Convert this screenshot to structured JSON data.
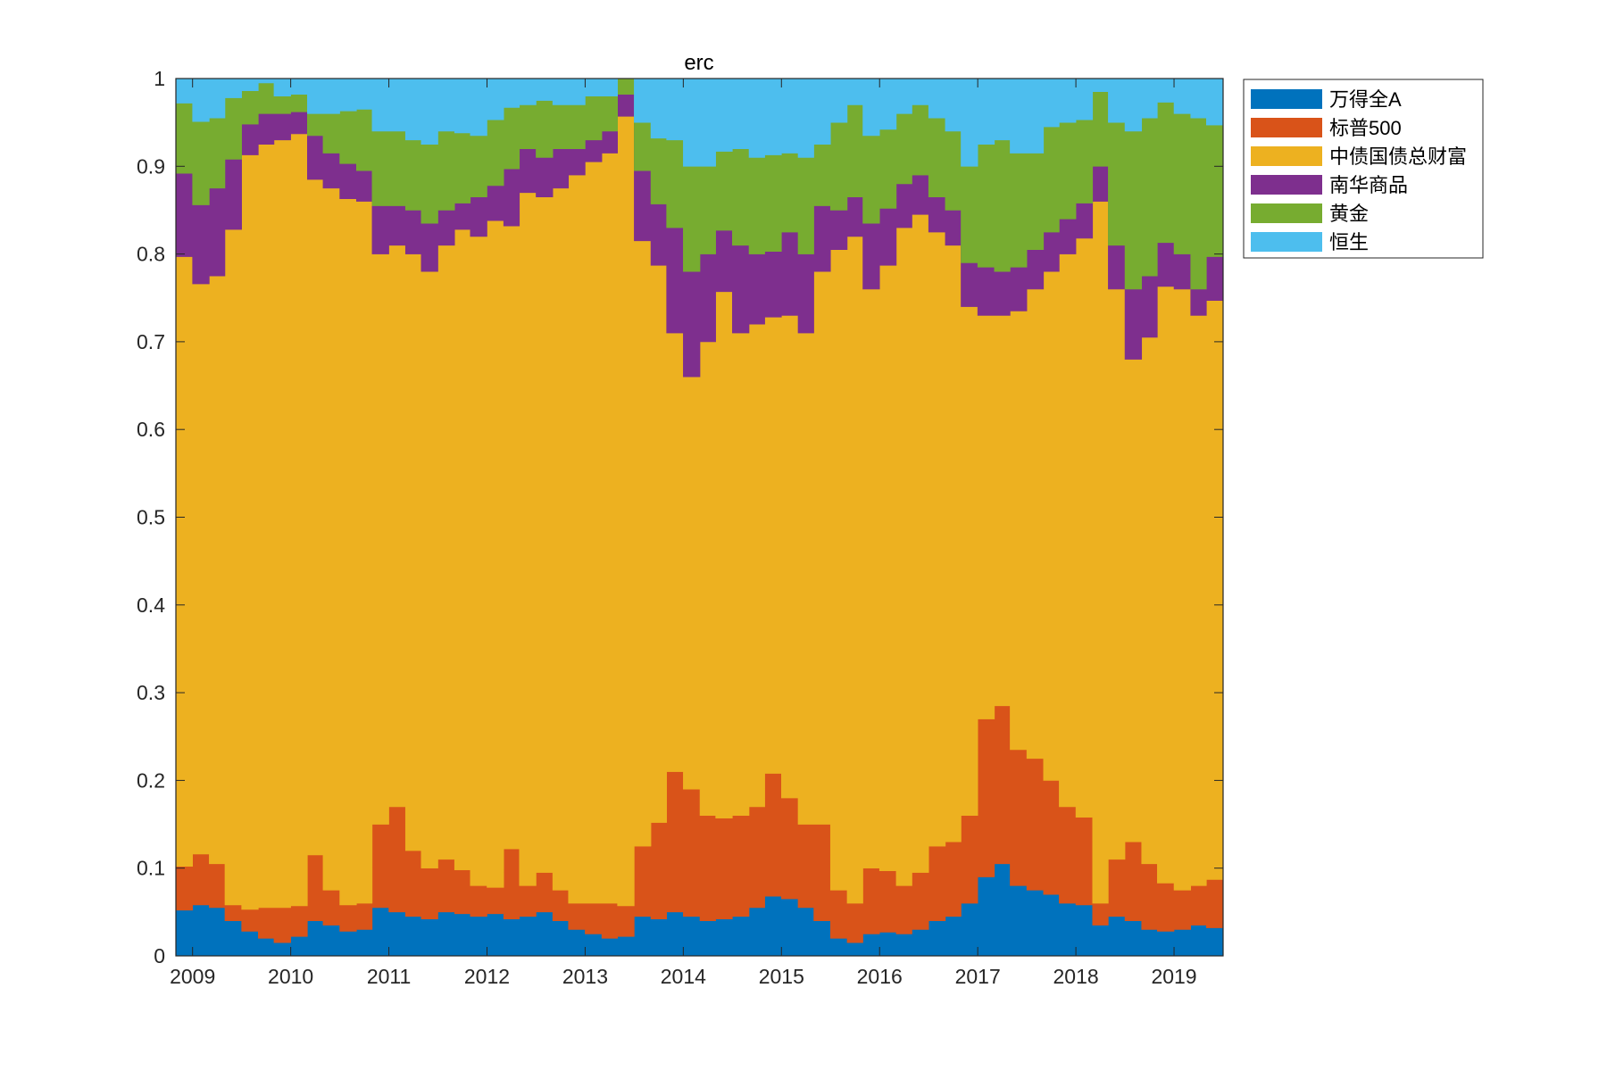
{
  "chart_data": {
    "type": "area",
    "stacked": true,
    "style": "stepped",
    "title": "erc",
    "xlabel": "",
    "ylabel": "",
    "xlim": [
      2008.83,
      2019.5
    ],
    "ylim": [
      0,
      1
    ],
    "x_ticks": [
      "2009",
      "2010",
      "2011",
      "2012",
      "2013",
      "2014",
      "2015",
      "2016",
      "2017",
      "2018",
      "2019"
    ],
    "y_ticks": [
      "0",
      "0.1",
      "0.2",
      "0.3",
      "0.4",
      "0.5",
      "0.6",
      "0.7",
      "0.8",
      "0.9",
      "1"
    ],
    "grid": false,
    "legend_position": "outside-top-right",
    "x": [
      2008.83,
      2009.0,
      2009.17,
      2009.33,
      2009.5,
      2009.67,
      2009.83,
      2010.0,
      2010.17,
      2010.33,
      2010.5,
      2010.67,
      2010.83,
      2011.0,
      2011.17,
      2011.33,
      2011.5,
      2011.67,
      2011.83,
      2012.0,
      2012.17,
      2012.33,
      2012.5,
      2012.67,
      2012.83,
      2013.0,
      2013.17,
      2013.33,
      2013.5,
      2013.67,
      2013.83,
      2014.0,
      2014.17,
      2014.33,
      2014.5,
      2014.67,
      2014.83,
      2015.0,
      2015.17,
      2015.33,
      2015.5,
      2015.67,
      2015.83,
      2016.0,
      2016.17,
      2016.33,
      2016.5,
      2016.67,
      2016.83,
      2017.0,
      2017.17,
      2017.33,
      2017.5,
      2017.67,
      2017.83,
      2018.0,
      2018.17,
      2018.33,
      2018.5,
      2018.67,
      2018.83,
      2019.0,
      2019.17,
      2019.33
    ],
    "series": [
      {
        "name": "万得全A",
        "color": "#0072BD",
        "values": [
          0.052,
          0.058,
          0.055,
          0.04,
          0.028,
          0.02,
          0.015,
          0.022,
          0.04,
          0.035,
          0.028,
          0.03,
          0.055,
          0.05,
          0.045,
          0.042,
          0.05,
          0.048,
          0.045,
          0.048,
          0.042,
          0.045,
          0.05,
          0.04,
          0.03,
          0.025,
          0.02,
          0.022,
          0.045,
          0.042,
          0.05,
          0.045,
          0.04,
          0.042,
          0.045,
          0.055,
          0.068,
          0.065,
          0.055,
          0.04,
          0.02,
          0.015,
          0.025,
          0.027,
          0.025,
          0.03,
          0.04,
          0.045,
          0.06,
          0.09,
          0.105,
          0.08,
          0.075,
          0.07,
          0.06,
          0.058,
          0.035,
          0.045,
          0.04,
          0.03,
          0.028,
          0.03,
          0.035,
          0.032
        ]
      },
      {
        "name": "标普500",
        "color": "#D95319",
        "values": [
          0.05,
          0.058,
          0.05,
          0.018,
          0.025,
          0.035,
          0.04,
          0.035,
          0.075,
          0.04,
          0.03,
          0.03,
          0.095,
          0.12,
          0.075,
          0.058,
          0.06,
          0.05,
          0.035,
          0.03,
          0.08,
          0.035,
          0.045,
          0.035,
          0.03,
          0.035,
          0.04,
          0.035,
          0.08,
          0.11,
          0.16,
          0.145,
          0.12,
          0.115,
          0.115,
          0.115,
          0.14,
          0.115,
          0.095,
          0.11,
          0.055,
          0.045,
          0.075,
          0.07,
          0.055,
          0.065,
          0.085,
          0.085,
          0.1,
          0.18,
          0.18,
          0.155,
          0.15,
          0.13,
          0.11,
          0.1,
          0.025,
          0.065,
          0.09,
          0.075,
          0.055,
          0.045,
          0.045,
          0.055
        ]
      },
      {
        "name": "中债国债总财富",
        "color": "#EDB120",
        "values": [
          0.695,
          0.65,
          0.67,
          0.77,
          0.86,
          0.87,
          0.875,
          0.88,
          0.77,
          0.8,
          0.805,
          0.8,
          0.65,
          0.64,
          0.68,
          0.68,
          0.7,
          0.73,
          0.74,
          0.76,
          0.71,
          0.79,
          0.77,
          0.8,
          0.83,
          0.845,
          0.855,
          0.9,
          0.69,
          0.635,
          0.5,
          0.47,
          0.54,
          0.6,
          0.55,
          0.55,
          0.52,
          0.55,
          0.56,
          0.63,
          0.73,
          0.76,
          0.66,
          0.69,
          0.75,
          0.75,
          0.7,
          0.68,
          0.58,
          0.46,
          0.445,
          0.5,
          0.535,
          0.58,
          0.63,
          0.66,
          0.8,
          0.65,
          0.55,
          0.6,
          0.68,
          0.685,
          0.65,
          0.66
        ]
      },
      {
        "name": "南华商品",
        "color": "#7E2F8E",
        "values": [
          0.095,
          0.09,
          0.1,
          0.08,
          0.035,
          0.035,
          0.03,
          0.025,
          0.05,
          0.04,
          0.04,
          0.035,
          0.055,
          0.045,
          0.05,
          0.055,
          0.04,
          0.03,
          0.045,
          0.04,
          0.065,
          0.05,
          0.045,
          0.045,
          0.03,
          0.025,
          0.025,
          0.025,
          0.08,
          0.07,
          0.12,
          0.12,
          0.1,
          0.07,
          0.1,
          0.08,
          0.075,
          0.095,
          0.09,
          0.075,
          0.045,
          0.045,
          0.075,
          0.065,
          0.05,
          0.045,
          0.04,
          0.04,
          0.05,
          0.055,
          0.05,
          0.05,
          0.045,
          0.045,
          0.04,
          0.04,
          0.04,
          0.05,
          0.08,
          0.07,
          0.05,
          0.04,
          0.03,
          0.05
        ]
      },
      {
        "name": "黄金",
        "color": "#77AC30",
        "values": [
          0.08,
          0.095,
          0.08,
          0.07,
          0.038,
          0.035,
          0.02,
          0.02,
          0.025,
          0.045,
          0.06,
          0.07,
          0.085,
          0.085,
          0.08,
          0.09,
          0.09,
          0.08,
          0.07,
          0.075,
          0.07,
          0.05,
          0.065,
          0.05,
          0.05,
          0.05,
          0.04,
          0.02,
          0.055,
          0.075,
          0.1,
          0.12,
          0.1,
          0.09,
          0.11,
          0.11,
          0.11,
          0.09,
          0.11,
          0.07,
          0.1,
          0.105,
          0.1,
          0.09,
          0.08,
          0.08,
          0.09,
          0.09,
          0.11,
          0.14,
          0.15,
          0.13,
          0.11,
          0.12,
          0.11,
          0.095,
          0.085,
          0.14,
          0.18,
          0.18,
          0.16,
          0.16,
          0.195,
          0.15
        ]
      },
      {
        "name": "恒生",
        "color": "#4DBEEE",
        "values": [
          0.028,
          0.049,
          0.045,
          0.022,
          0.014,
          0.02,
          0.02,
          0.018,
          0.04,
          0.04,
          0.037,
          0.035,
          0.06,
          0.06,
          0.07,
          0.075,
          0.06,
          0.062,
          0.065,
          0.047,
          0.033,
          0.03,
          0.025,
          0.03,
          0.03,
          0.02,
          0.02,
          0.023,
          0.05,
          0.068,
          0.07,
          0.1,
          0.1,
          0.083,
          0.08,
          0.09,
          0.087,
          0.085,
          0.09,
          0.075,
          0.05,
          0.03,
          0.065,
          0.058,
          0.04,
          0.03,
          0.045,
          0.06,
          0.1,
          0.075,
          0.07,
          0.085,
          0.085,
          0.055,
          0.05,
          0.047,
          0.015,
          0.05,
          0.06,
          0.045,
          0.027,
          0.04,
          0.045,
          0.053
        ]
      }
    ]
  }
}
